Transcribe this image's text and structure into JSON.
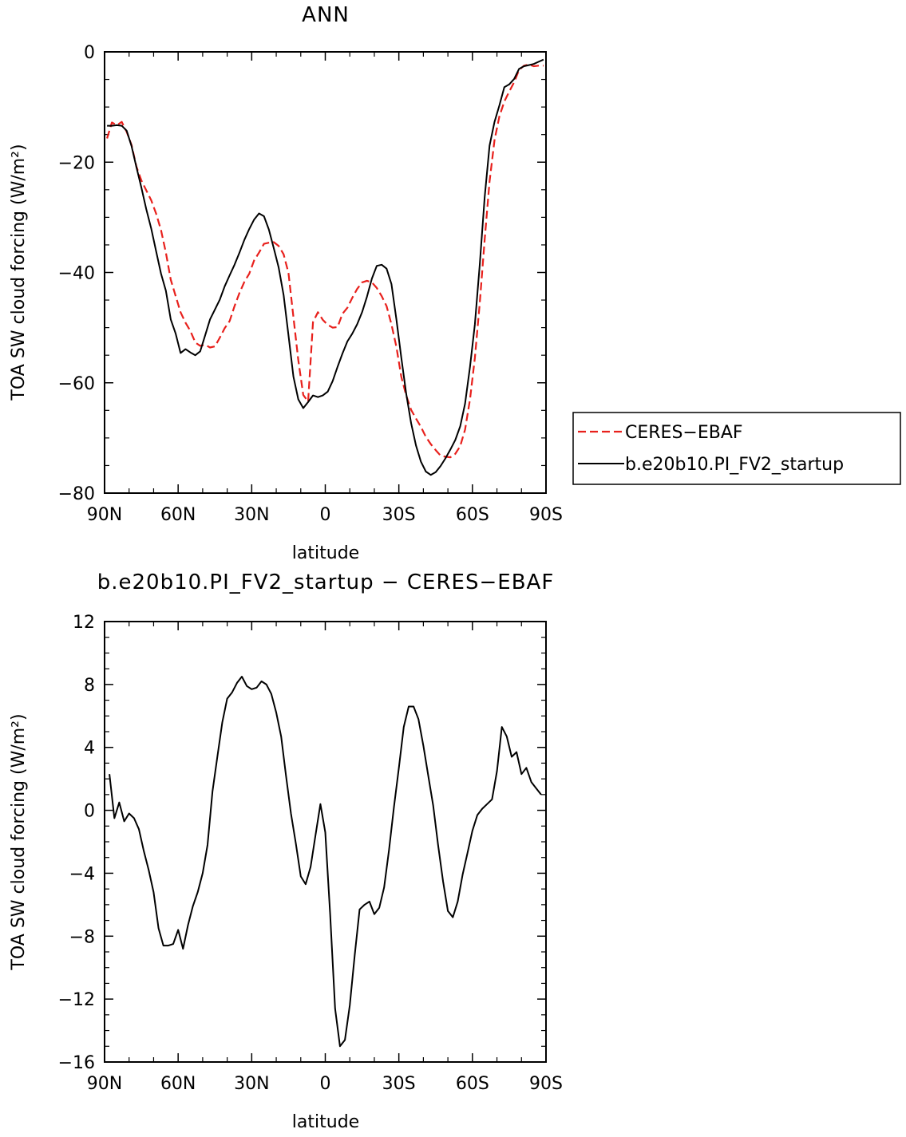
{
  "chart_data": [
    {
      "type": "line",
      "title": "ANN",
      "xlabel": "latitude",
      "ylabel": "TOA SW cloud forcing (W/m²)",
      "xlim": [
        90,
        -90
      ],
      "ylim": [
        -80,
        0
      ],
      "xticks": [
        90,
        60,
        30,
        0,
        -30,
        -60,
        -90
      ],
      "xtick_labels": [
        "90N",
        "60N",
        "30N",
        "0",
        "30S",
        "60S",
        "90S"
      ],
      "yticks": [
        0,
        -20,
        -40,
        -60,
        -80
      ],
      "ytick_labels": [
        "0",
        "−20",
        "−40",
        "−60",
        "−80"
      ],
      "legend": "right",
      "series": [
        {
          "name": "CERES−EBAF",
          "color": "#e8201c",
          "dash": true,
          "x": [
            89,
            87,
            85,
            83,
            81,
            79,
            77,
            75,
            73,
            71,
            69,
            67,
            65,
            63,
            61,
            59,
            57,
            55,
            53,
            51,
            49,
            47,
            45,
            43,
            41,
            39,
            37,
            35,
            33,
            31,
            29,
            27,
            25,
            23,
            21,
            19,
            17,
            15,
            13,
            11,
            9,
            7,
            5,
            3,
            1,
            -1,
            -3,
            -5,
            -7,
            -9,
            -11,
            -13,
            -15,
            -17,
            -19,
            -21,
            -23,
            -25,
            -27,
            -29,
            -31,
            -33,
            -35,
            -37,
            -39,
            -41,
            -43,
            -45,
            -47,
            -49,
            -51,
            -53,
            -55,
            -57,
            -59,
            -61,
            -63,
            -65,
            -67,
            -69,
            -71,
            -73,
            -75,
            -77,
            -79,
            -81,
            -83,
            -85,
            -87,
            -89
          ],
          "y": [
            -15.7,
            -12.8,
            -13.3,
            -12.7,
            -14.5,
            -16.9,
            -20.8,
            -23.3,
            -25.1,
            -26.9,
            -29.3,
            -32.3,
            -36.4,
            -41.3,
            -44.3,
            -47.2,
            -49.1,
            -50.6,
            -52.7,
            -53.3,
            -53.1,
            -53.6,
            -53.4,
            -51.8,
            -50.1,
            -48.8,
            -46.1,
            -43.7,
            -41.7,
            -40.2,
            -37.8,
            -36.4,
            -34.8,
            -34.6,
            -34.5,
            -35.2,
            -36.7,
            -40.1,
            -48.1,
            -55.9,
            -62.2,
            -63.4,
            -49.0,
            -47.2,
            -48.6,
            -49.5,
            -50.0,
            -49.9,
            -47.5,
            -46.4,
            -44.6,
            -43.0,
            -41.8,
            -41.5,
            -41.8,
            -42.8,
            -44.3,
            -46.1,
            -49.4,
            -53.5,
            -58.9,
            -62.3,
            -64.9,
            -66.5,
            -68.0,
            -69.8,
            -71.1,
            -72.2,
            -73.2,
            -73.4,
            -73.5,
            -72.9,
            -71.5,
            -68.5,
            -63.0,
            -55.5,
            -45.6,
            -34.0,
            -23.5,
            -16.0,
            -11.7,
            -9.0,
            -7.2,
            -5.5,
            -3.3,
            -2.5,
            -2.3,
            -2.6,
            -2.5,
            -2.5
          ]
        },
        {
          "name": "b.e20b10.PI_FV2_startup",
          "color": "#000000",
          "dash": false,
          "x": [
            89,
            87,
            85,
            83,
            81,
            79,
            77,
            75,
            73,
            71,
            69,
            67,
            65,
            63,
            61,
            59,
            57,
            55,
            53,
            51,
            49,
            47,
            45,
            43,
            41,
            39,
            37,
            35,
            33,
            31,
            29,
            27,
            25,
            23,
            21,
            19,
            17,
            15,
            13,
            11,
            9,
            7,
            5,
            3,
            1,
            -1,
            -3,
            -5,
            -7,
            -9,
            -11,
            -13,
            -15,
            -17,
            -19,
            -21,
            -23,
            -25,
            -27,
            -29,
            -31,
            -33,
            -35,
            -37,
            -39,
            -41,
            -43,
            -45,
            -47,
            -49,
            -51,
            -53,
            -55,
            -57,
            -59,
            -61,
            -63,
            -65,
            -67,
            -69,
            -71,
            -73,
            -75,
            -77,
            -79,
            -81,
            -83,
            -85,
            -87,
            -89
          ],
          "y": [
            -13.4,
            -13.4,
            -13.3,
            -13.4,
            -14.3,
            -17.1,
            -20.9,
            -24.6,
            -28.5,
            -32.0,
            -36.1,
            -40.2,
            -43.3,
            -48.5,
            -51.1,
            -54.6,
            -53.9,
            -54.5,
            -55.0,
            -54.3,
            -51.4,
            -48.5,
            -46.7,
            -44.9,
            -42.5,
            -40.5,
            -38.6,
            -36.4,
            -34.1,
            -32.1,
            -30.4,
            -29.3,
            -29.8,
            -32.2,
            -35.6,
            -39.1,
            -44.1,
            -51.4,
            -58.9,
            -63.0,
            -64.6,
            -63.5,
            -62.3,
            -62.6,
            -62.3,
            -61.6,
            -59.7,
            -57.1,
            -54.7,
            -52.5,
            -51.1,
            -49.4,
            -47.2,
            -44.4,
            -41.1,
            -38.8,
            -38.6,
            -39.3,
            -42.1,
            -48.5,
            -55.4,
            -62.0,
            -67.3,
            -71.4,
            -74.3,
            -76.1,
            -76.7,
            -76.2,
            -75.1,
            -73.7,
            -72.1,
            -70.4,
            -67.9,
            -63.8,
            -57.1,
            -49.4,
            -38.6,
            -26.3,
            -17.0,
            -12.7,
            -9.7,
            -6.4,
            -5.9,
            -4.9,
            -3.1,
            -2.6,
            -2.4,
            -2.2,
            -1.8,
            -1.4
          ]
        }
      ]
    },
    {
      "type": "line",
      "title": "b.e20b10.PI_FV2_startup − CERES−EBAF",
      "xlabel": "latitude",
      "ylabel": "TOA SW cloud forcing (W/m²)",
      "xlim": [
        90,
        -90
      ],
      "ylim": [
        -16,
        12
      ],
      "xticks": [
        90,
        60,
        30,
        0,
        -30,
        -60,
        -90
      ],
      "xtick_labels": [
        "90N",
        "60N",
        "30N",
        "0",
        "30S",
        "60S",
        "90S"
      ],
      "yticks": [
        12,
        8,
        4,
        0,
        -4,
        -8,
        -12,
        -16
      ],
      "ytick_labels": [
        "12",
        "8",
        "4",
        "0",
        "−4",
        "−8",
        "−12",
        "−16"
      ],
      "series": [
        {
          "color": "#000000",
          "dash": false,
          "x": [
            88,
            86,
            84,
            82,
            80,
            78,
            76,
            74,
            72,
            70,
            68,
            66,
            64,
            62,
            60,
            58,
            56,
            54,
            52,
            50,
            48,
            46,
            44,
            42,
            40,
            38,
            36,
            34,
            32,
            30,
            28,
            26,
            24,
            22,
            20,
            18,
            16,
            14,
            12,
            10,
            8,
            6,
            4,
            2,
            0,
            -2,
            -4,
            -6,
            -8,
            -10,
            -12,
            -14,
            -16,
            -18,
            -20,
            -22,
            -24,
            -26,
            -28,
            -30,
            -32,
            -34,
            -36,
            -38,
            -40,
            -42,
            -44,
            -46,
            -48,
            -50,
            -52,
            -54,
            -56,
            -58,
            -60,
            -62,
            -64,
            -66,
            -68,
            -70,
            -72,
            -74,
            -76,
            -78,
            -80,
            -82,
            -84,
            -86,
            -88
          ],
          "y": [
            2.3,
            -0.5,
            0.5,
            -0.7,
            -0.2,
            -0.5,
            -1.2,
            -2.6,
            -3.8,
            -5.2,
            -7.5,
            -8.6,
            -8.6,
            -8.5,
            -7.6,
            -8.8,
            -7.3,
            -6.1,
            -5.2,
            -4.0,
            -2.2,
            1.2,
            3.4,
            5.6,
            7.1,
            7.5,
            8.1,
            8.5,
            7.9,
            7.7,
            7.8,
            8.2,
            8.0,
            7.4,
            6.2,
            4.7,
            2.2,
            -0.2,
            -2.1,
            -4.2,
            -4.7,
            -3.6,
            -1.6,
            0.4,
            -1.4,
            -6.6,
            -12.6,
            -15.0,
            -14.6,
            -12.4,
            -9.2,
            -6.3,
            -6.0,
            -5.8,
            -6.6,
            -6.2,
            -4.9,
            -2.5,
            0.2,
            2.7,
            5.3,
            6.6,
            6.6,
            5.8,
            4.1,
            2.2,
            0.3,
            -2.2,
            -4.5,
            -6.4,
            -6.8,
            -5.8,
            -4.1,
            -2.7,
            -1.3,
            -0.3,
            0.1,
            0.4,
            0.7,
            2.5,
            5.3,
            4.7,
            3.4,
            3.7,
            2.3,
            2.7,
            1.8,
            1.4,
            1.0
          ]
        }
      ]
    }
  ]
}
